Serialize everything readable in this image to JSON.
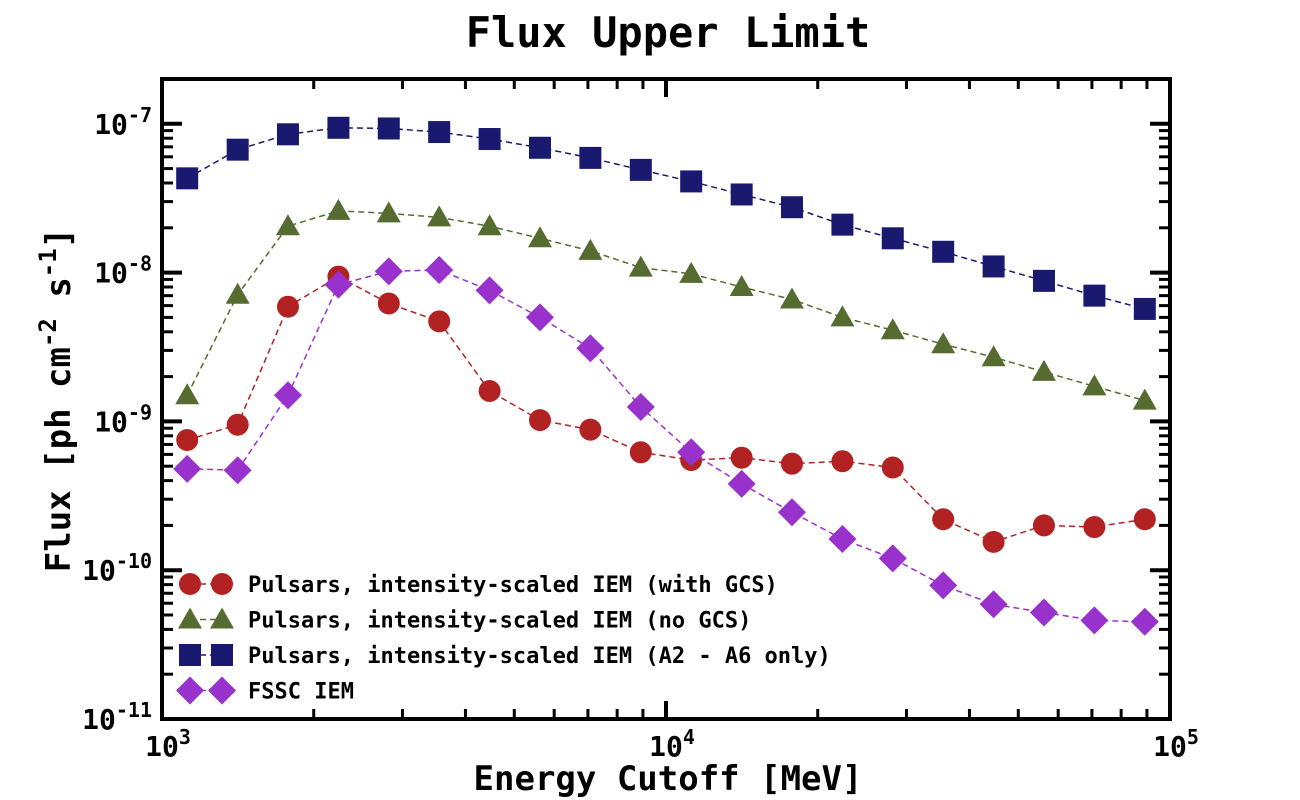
{
  "chart_data": {
    "type": "scatter",
    "title": "Flux Upper Limit",
    "xlabel": "Energy Cutoff [MeV]",
    "ylabel": "Flux [ph cm-2 s-1]",
    "ylabel_parts": {
      "a": "Flux [ph cm",
      "b": "-2",
      "c": " s",
      "d": "-1",
      "e": "]"
    },
    "xscale": "log",
    "yscale": "log",
    "xlim": [
      1000,
      100000
    ],
    "ylim": [
      1e-11,
      2e-07
    ],
    "xticks": [
      {
        "value": 1000,
        "base": "10",
        "exp": "3"
      },
      {
        "value": 10000,
        "base": "10",
        "exp": "4"
      },
      {
        "value": 100000,
        "base": "10",
        "exp": "5"
      }
    ],
    "yticks": [
      {
        "value": 1e-11,
        "base": "10",
        "exp": "-11"
      },
      {
        "value": 1e-10,
        "base": "10",
        "exp": "-10"
      },
      {
        "value": 1e-09,
        "base": "10",
        "exp": "-9"
      },
      {
        "value": 1e-08,
        "base": "10",
        "exp": "-8"
      },
      {
        "value": 1e-07,
        "base": "10",
        "exp": "-7"
      }
    ],
    "legend_placement": "lower-left",
    "x": [
      1122,
      1413,
      1778,
      2239,
      2818,
      3548,
      4467,
      5623,
      7079,
      8913,
      11220,
      14130,
      17780,
      22390,
      28180,
      35480,
      44670,
      56230,
      70790,
      89130
    ],
    "series": [
      {
        "name": "Pulsars, intensity-scaled IEM (with GCS)",
        "marker": "circle",
        "color": "#b22222",
        "values": [
          7.5e-10,
          9.5e-10,
          5.9e-09,
          9.4e-09,
          6.2e-09,
          4.7e-09,
          1.6e-09,
          1.02e-09,
          8.8e-10,
          6.2e-10,
          5.5e-10,
          5.7e-10,
          5.2e-10,
          5.4e-10,
          4.9e-10,
          2.2e-10,
          1.55e-10,
          2e-10,
          1.95e-10,
          2.2e-10
        ]
      },
      {
        "name": "Pulsars, intensity-scaled IEM (no GCS)",
        "marker": "triangle",
        "color": "#556b2f",
        "values": [
          1.5e-09,
          7.1e-09,
          2.05e-08,
          2.6e-08,
          2.5e-08,
          2.35e-08,
          2.05e-08,
          1.7e-08,
          1.4e-08,
          1.08e-08,
          9.8e-09,
          8e-09,
          6.6e-09,
          5e-09,
          4.1e-09,
          3.3e-09,
          2.7e-09,
          2.15e-09,
          1.72e-09,
          1.38e-09
        ]
      },
      {
        "name": "Pulsars, intensity-scaled IEM (A2 - A6 only)",
        "marker": "square",
        "color": "#191970",
        "values": [
          4.3e-08,
          6.7e-08,
          8.5e-08,
          9.4e-08,
          9.3e-08,
          8.8e-08,
          7.9e-08,
          6.9e-08,
          5.9e-08,
          4.9e-08,
          4.1e-08,
          3.35e-08,
          2.75e-08,
          2.1e-08,
          1.7e-08,
          1.38e-08,
          1.1e-08,
          8.8e-09,
          7e-09,
          5.7e-09
        ]
      },
      {
        "name": "FSSC IEM",
        "marker": "diamond",
        "color": "#9932cc",
        "values": [
          4.8e-10,
          4.7e-10,
          1.5e-09,
          8.3e-09,
          1.02e-08,
          1.04e-08,
          7.6e-09,
          5e-09,
          3.1e-09,
          1.25e-09,
          6.2e-10,
          3.8e-10,
          2.45e-10,
          1.62e-10,
          1.2e-10,
          7.9e-11,
          5.9e-11,
          5.2e-11,
          4.6e-11,
          4.5e-11
        ]
      }
    ]
  }
}
